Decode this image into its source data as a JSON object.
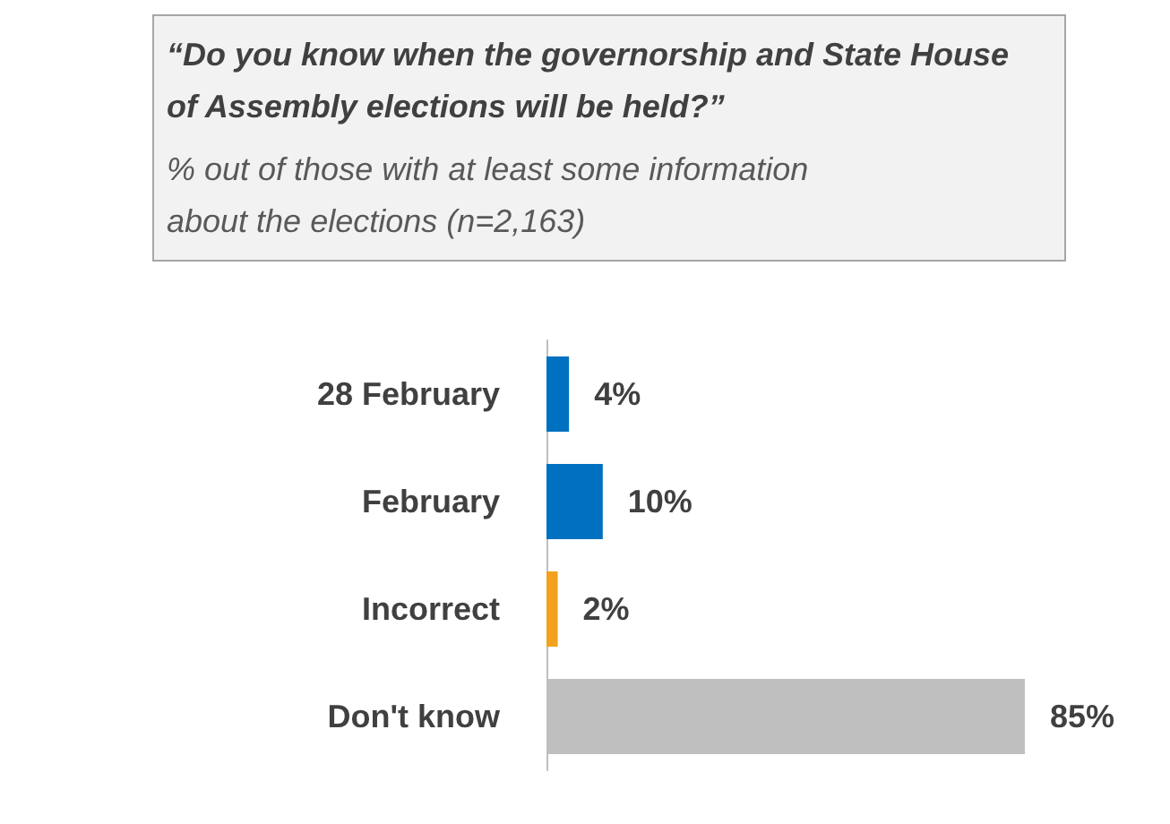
{
  "chart_data": {
    "type": "bar",
    "orientation": "horizontal",
    "title": "“Do you know when the governorship and State House of Assembly elections will be held?”",
    "subtitle": "% out of those with at least some information about the elections (n=2,163)",
    "categories": [
      "28 February",
      "February",
      "Incorrect",
      "Don't know"
    ],
    "values": [
      4,
      10,
      2,
      85
    ],
    "colors": [
      "#0070c0",
      "#0070c0",
      "#f4a11d",
      "#bfbfbf"
    ],
    "value_labels": [
      "4%",
      "10%",
      "2%",
      "85%"
    ]
  }
}
